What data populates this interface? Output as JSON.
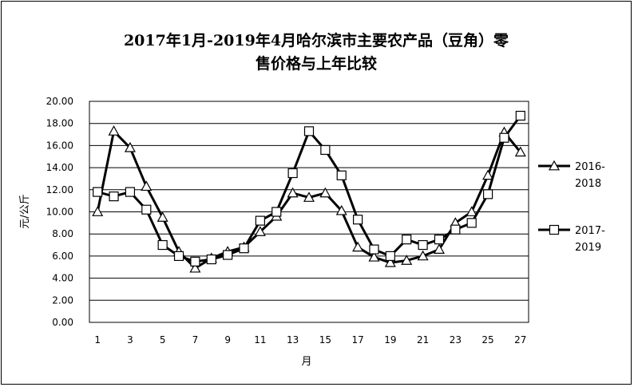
{
  "chart_data": {
    "type": "line",
    "title_line1": "2017年1月-2019年4月哈尔滨市主要农产品（豆角）零",
    "title_line2": "售价格与上年比较",
    "xlabel": "月",
    "ylabel": "元/公斤",
    "ylim": [
      0,
      20
    ],
    "yticks": [
      "0.00",
      "2.00",
      "4.00",
      "6.00",
      "8.00",
      "10.00",
      "12.00",
      "14.00",
      "16.00",
      "18.00",
      "20.00"
    ],
    "xlim": [
      1,
      27
    ],
    "xticks": [
      "1",
      "3",
      "5",
      "7",
      "9",
      "11",
      "13",
      "15",
      "17",
      "19",
      "21",
      "23",
      "25",
      "27"
    ],
    "x": [
      1,
      2,
      3,
      4,
      5,
      6,
      7,
      8,
      9,
      10,
      11,
      12,
      13,
      14,
      15,
      16,
      17,
      18,
      19,
      20,
      21,
      22,
      23,
      24,
      25,
      26,
      27
    ],
    "grid": "horizontal",
    "legend_position": "right",
    "series": [
      {
        "name_line1": "2016-",
        "name_line2": "2018",
        "marker": "triangle",
        "values": [
          10.0,
          17.3,
          15.8,
          12.3,
          9.5,
          6.4,
          4.9,
          5.8,
          6.4,
          6.8,
          8.2,
          9.6,
          11.7,
          11.3,
          11.7,
          10.1,
          6.8,
          5.9,
          5.4,
          5.6,
          6.0,
          6.6,
          9.0,
          10.0,
          13.3,
          17.2,
          15.4
        ]
      },
      {
        "name_line1": "2017-",
        "name_line2": "2019",
        "marker": "square",
        "values": [
          11.8,
          11.4,
          11.8,
          10.2,
          7.0,
          6.0,
          5.5,
          5.7,
          6.1,
          6.7,
          9.2,
          10.0,
          13.5,
          17.3,
          15.6,
          13.3,
          9.3,
          6.6,
          6.0,
          7.5,
          7.0,
          7.5,
          8.4,
          9.0,
          11.6,
          16.7,
          18.7
        ]
      }
    ]
  }
}
